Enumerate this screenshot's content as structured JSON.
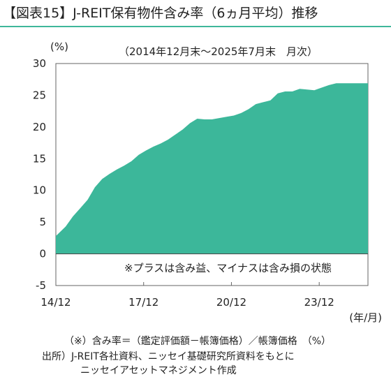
{
  "header": {
    "title": "【図表15】J-REIT保有物件含み率（6ヵ月平均）推移"
  },
  "chart_data": {
    "type": "area",
    "title": "【図表15】J-REIT保有物件含み率（6ヵ月平均）推移",
    "subtitle": "（2014年12月末～2025年7月末　月次）",
    "ylabel": "(%)",
    "xlabel": "(年/月)",
    "ylim": [
      -5,
      30
    ],
    "xlim": [
      2014.917,
      2025.583
    ],
    "yticks": [
      "30",
      "25",
      "20",
      "15",
      "10",
      "5",
      "0",
      "-5"
    ],
    "ytick_values": [
      30,
      25,
      20,
      15,
      10,
      5,
      0,
      -5
    ],
    "xticks": [
      "14/12",
      "17/12",
      "20/12",
      "23/12"
    ],
    "xtick_values": [
      2014.917,
      2017.917,
      2020.917,
      2023.917
    ],
    "grid": false,
    "annotation": "※プラスは含み益、マイナスは含み損の状態",
    "fill_color": "#3cb79a",
    "series": [
      {
        "x": [
          2014.917,
          2015.25,
          2015.5,
          2015.75,
          2016.0,
          2016.25,
          2016.5,
          2016.75,
          2017.0,
          2017.25,
          2017.5,
          2017.75,
          2018.0,
          2018.25,
          2018.5,
          2018.75,
          2019.0,
          2019.25,
          2019.5,
          2019.75,
          2020.0,
          2020.25,
          2020.5,
          2020.75,
          2021.0,
          2021.25,
          2021.5,
          2021.75,
          2022.0,
          2022.25,
          2022.5,
          2022.75,
          2023.0,
          2023.25,
          2023.5,
          2023.75,
          2024.0,
          2024.25,
          2024.5,
          2024.75,
          2025.0,
          2025.25,
          2025.583
        ],
        "values": [
          2.8,
          4.3,
          5.9,
          7.2,
          8.5,
          10.5,
          11.8,
          12.6,
          13.3,
          13.9,
          14.6,
          15.6,
          16.3,
          16.9,
          17.4,
          18.0,
          18.8,
          19.6,
          20.6,
          21.3,
          21.2,
          21.2,
          21.4,
          21.6,
          21.8,
          22.2,
          22.8,
          23.6,
          23.9,
          24.2,
          25.3,
          25.6,
          25.6,
          26.0,
          25.9,
          25.8,
          26.2,
          26.6,
          26.9,
          26.9,
          26.9,
          26.9,
          26.9
        ]
      }
    ]
  },
  "footer": {
    "note_line1": "（※）含み率＝（鑑定評価額－帳簿価格）／帳簿価格　（%）",
    "note_line2": "出所）J-REIT各社資料、ニッセイ基礎研究所資料をもとに",
    "note_line3": "ニッセイアセットマネジメント作成"
  }
}
